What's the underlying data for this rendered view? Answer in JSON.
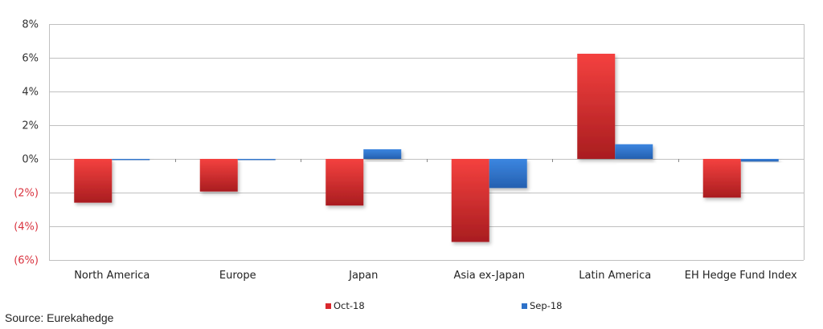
{
  "chart_data": {
    "type": "bar",
    "title": "",
    "xlabel": "",
    "ylabel": "",
    "ylim": [
      -6,
      8
    ],
    "yticks": [
      "8%",
      "6%",
      "4%",
      "2%",
      "0%",
      "(2%)",
      "(4%)",
      "(6%)"
    ],
    "ytick_values": [
      8,
      6,
      4,
      2,
      0,
      -2,
      -4,
      -6
    ],
    "negative_tick_color": "#d9333f",
    "grid": true,
    "legend_position": "bottom",
    "categories": [
      "North America",
      "Europe",
      "Japan",
      "Asia ex-Japan",
      "Latin America",
      "EH Hedge Fund Index"
    ],
    "series": [
      {
        "name": "Oct-18",
        "color": "#d9282d",
        "values": [
          -2.6,
          -1.94,
          -2.77,
          -4.93,
          6.24,
          -2.3
        ]
      },
      {
        "name": "Sep-18",
        "color": "#2e72c9",
        "values": [
          -0.03,
          -0.03,
          0.57,
          -1.73,
          0.87,
          -0.16
        ]
      }
    ]
  },
  "legend": {
    "items": [
      {
        "label": "Oct-18",
        "color": "#d9282d"
      },
      {
        "label": "Sep-18",
        "color": "#2e72c9"
      }
    ]
  },
  "source": "Source: Eurekahedge"
}
